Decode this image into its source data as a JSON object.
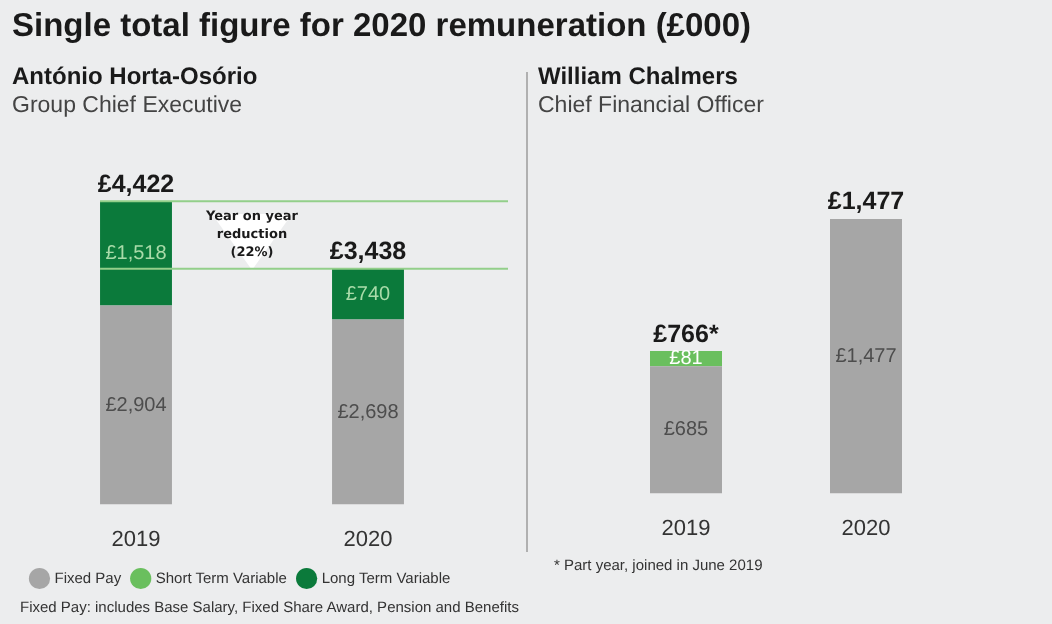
{
  "chart_data": [
    {
      "type": "other",
      "title": "Single total figure for 2020 remuneration (£000)",
      "annotations": [
        "Fixed Pay: includes Base Salary, Fixed Share Award, Pension and Benefits"
      ]
    },
    {
      "type": "bar",
      "title": "António Horta-Osório",
      "subtitle": "Group Chief Executive",
      "categories": [
        "2019",
        "2020"
      ],
      "stacked": true,
      "legend": "bottom",
      "series": [
        {
          "name": "Fixed Pay",
          "color": "#a6a6a6",
          "values": [
            2904,
            2698
          ],
          "value_labels": [
            "£2,904",
            "£2,698"
          ]
        },
        {
          "name": "Short Term Variable",
          "color": "#6abf5e",
          "values": [
            null,
            null
          ]
        },
        {
          "name": "Long Term Variable",
          "color": "#0b7a3b",
          "values": [
            1518,
            740
          ],
          "value_labels": [
            "£1,518",
            "£740"
          ]
        }
      ],
      "totals": [
        "£4,422",
        "£3,438"
      ],
      "ref_lines": [
        {
          "axis": "y",
          "value": 4422,
          "color": "#93cf8a"
        },
        {
          "axis": "y",
          "value": 3438,
          "color": "#93cf8a"
        }
      ],
      "annotations": [
        "Year on year reduction (22%)"
      ]
    },
    {
      "type": "bar",
      "title": "William Chalmers",
      "subtitle": "Chief Financial Officer",
      "categories": [
        "2019",
        "2020"
      ],
      "stacked": true,
      "series": [
        {
          "color": "#a6a6a6",
          "values": [
            685,
            1477
          ],
          "value_labels": [
            "£685",
            "£1,477"
          ]
        },
        {
          "color": "#6abf5e",
          "values": [
            81,
            null
          ],
          "value_labels": [
            "£81",
            null
          ]
        }
      ],
      "totals": [
        "£766*",
        "£1,477"
      ],
      "annotations": [
        "* Part year, joined in June 2019"
      ]
    }
  ]
}
